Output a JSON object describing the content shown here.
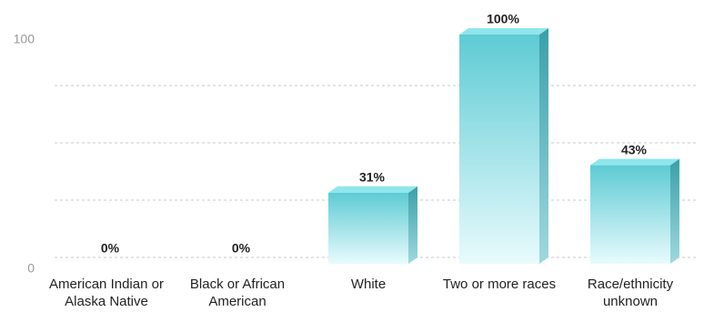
{
  "chart_data": {
    "type": "bar",
    "categories": [
      "American Indian or Alaska Native",
      "Black or African American",
      "White",
      "Two or more races",
      "Race/ethnicity unknown"
    ],
    "values": [
      0,
      0,
      31,
      100,
      43
    ],
    "value_labels": [
      "0%",
      "0%",
      "31%",
      "100%",
      "43%"
    ],
    "color": "#5ecbd4",
    "ylim": [
      0,
      100
    ],
    "yticks": [
      0,
      100
    ],
    "minor_yticks": [
      25,
      50,
      75
    ],
    "grid": true
  }
}
